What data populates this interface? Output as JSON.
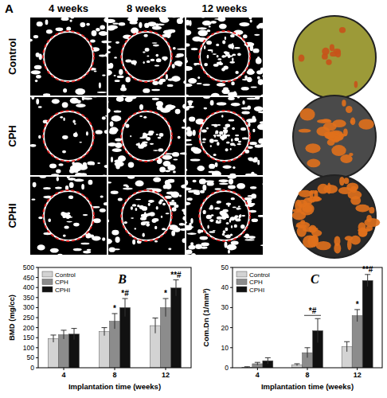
{
  "panel_a": {
    "label": "A",
    "columns": [
      "4 weeks",
      "8 weeks",
      "12 weeks"
    ],
    "rows": [
      "Control",
      "CPH",
      "CPHI"
    ]
  },
  "chart_data": [
    {
      "type": "bar",
      "title": "B",
      "x_label": "Implantation time (weeks)",
      "y_label": "BMD (mg/cc)",
      "categories": [
        "4",
        "8",
        "12"
      ],
      "series": [
        {
          "name": "Control",
          "color": "#d3d3d3",
          "values": [
            145,
            180,
            210
          ],
          "errors": [
            18,
            20,
            38
          ]
        },
        {
          "name": "CPH",
          "color": "#8c8c8c",
          "values": [
            165,
            232,
            300
          ],
          "errors": [
            22,
            38,
            45
          ]
        },
        {
          "name": "CPHI",
          "color": "#111111",
          "values": [
            168,
            300,
            398
          ],
          "errors": [
            28,
            45,
            40
          ]
        }
      ],
      "ylim": [
        0,
        500
      ],
      "yticks": [
        0,
        50,
        100,
        150,
        200,
        250,
        300,
        350,
        400,
        450,
        500
      ],
      "legend": "upper left",
      "annotations": [
        {
          "text": "*",
          "category": "8",
          "series": "CPH"
        },
        {
          "text": "*#",
          "category": "8",
          "series": "CPHI"
        },
        {
          "text": "*",
          "category": "12",
          "series": "CPH"
        },
        {
          "text": "**#",
          "category": "12",
          "series": "CPHI"
        }
      ]
    },
    {
      "type": "bar",
      "title": "C",
      "x_label": "Implantation time (weeks)",
      "y_label": "Com.Dn (1/mm³)",
      "categories": [
        "4",
        "8",
        "12"
      ],
      "series": [
        {
          "name": "Control",
          "color": "#d3d3d3",
          "values": [
            0.3,
            1.5,
            10.5
          ],
          "errors": [
            0.2,
            0.5,
            2.5
          ]
        },
        {
          "name": "CPH",
          "color": "#8c8c8c",
          "values": [
            2,
            7.5,
            26
          ],
          "errors": [
            0.7,
            2.5,
            3
          ]
        },
        {
          "name": "CPHI",
          "color": "#111111",
          "values": [
            3.5,
            18.5,
            43.5
          ],
          "errors": [
            1.5,
            6,
            3
          ]
        }
      ],
      "ylim": [
        0,
        50
      ],
      "yticks": [
        0,
        10,
        20,
        30,
        40,
        50
      ],
      "legend": "upper left",
      "annotations": [
        {
          "text": "*#",
          "category": "8",
          "series": [
            "CPH",
            "CPHI"
          ]
        },
        {
          "text": "*",
          "category": "12",
          "series": "CPH"
        },
        {
          "text": "**#",
          "category": "12",
          "series": "CPHI"
        }
      ]
    }
  ]
}
